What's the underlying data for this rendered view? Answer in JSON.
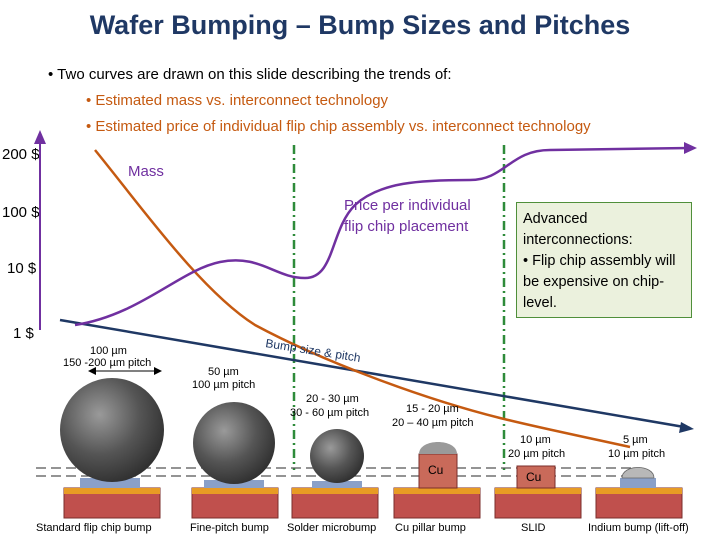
{
  "title": "Wafer Bumping – Bump Sizes and Pitches",
  "bullets": {
    "intro": "• Two curves are drawn on this slide describing the trends of:",
    "item1": "• Estimated mass vs. interconnect technology",
    "item2": "• Estimated price of individual flip chip assembly vs. interconnect technology"
  },
  "y_axis_labels": [
    "200 $",
    "100 $",
    "10 $",
    "1 $"
  ],
  "curve_labels": {
    "mass": "Mass",
    "price_line1": "Price per individual",
    "price_line2": "flip chip placement",
    "bump_trend": "Bump size & pitch"
  },
  "note": {
    "line1": "Advanced",
    "line2": "interconnections:",
    "line3": "• Flip chip assembly will be expensive on chip-level."
  },
  "bump_specs": {
    "s1a": "100 µm",
    "s1b": "150 -200 µm pitch",
    "s2a": "50 µm",
    "s2b": "100 µm pitch",
    "s3a": "20 - 30 µm",
    "s3b": "30 - 60 µm pitch",
    "s4a": "15 - 20 µm",
    "s4b": "20 – 40 µm pitch",
    "s5a": "10 µm",
    "s5b": "20 µm pitch",
    "s6a": "5 µm",
    "s6b": "10 µm pitch"
  },
  "bump_types": {
    "t1": "Standard flip chip bump",
    "t2": "Fine-pitch bump",
    "t3": "Solder microbump",
    "t4": "Cu pillar bump",
    "t5": "SLID",
    "t6": "Indium bump (lift-off)"
  },
  "material_labels": {
    "cu1": "Cu",
    "cu2": "Cu"
  },
  "colors": {
    "title": "#1f3864",
    "price_curve": "#7030a0",
    "mass_curve": "#c55a11",
    "bump_trend": "#1f3864",
    "divider": "#2e8b3a",
    "note_bg": "#ebf1dd",
    "note_border": "#4f8f3a"
  }
}
